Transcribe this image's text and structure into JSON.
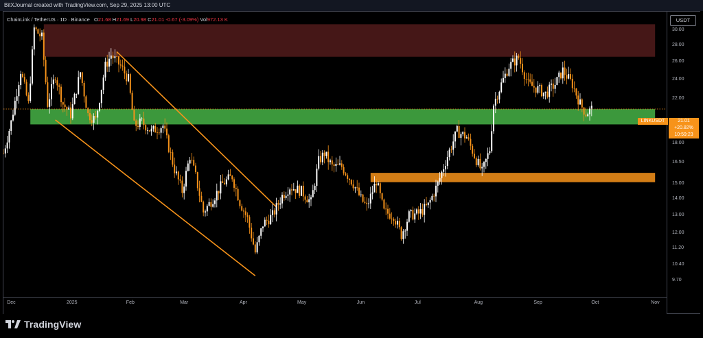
{
  "header": {
    "watermark": "BitXJournal created with TradingView.com, Sep 29, 2025 13:00 UTC"
  },
  "legend": {
    "symbol": "ChainLink / TetherUS · 1D · Binance",
    "o_key": "O",
    "o_val": "21.68",
    "h_key": "H",
    "h_val": "21.69",
    "l_key": "L",
    "l_val": "20.98",
    "c_key": "C",
    "c_val": "21.01",
    "change": "-0.67 (-3.09%)",
    "vol_key": "Vol",
    "vol_val": "972.13 K"
  },
  "currency_button": "USDT",
  "price_label": {
    "ticker": "LINKUSDT",
    "price": "21.01",
    "change": "+20.82%",
    "countdown": "10:59:23"
  },
  "footer": {
    "brand": "TradingView"
  },
  "chart_data": {
    "type": "candlestick",
    "symbol": "LINKUSDT",
    "interval": "1D",
    "exchange": "Binance",
    "y_scale": "log",
    "ylim": [
      9.0,
      32.5
    ],
    "y_ticks": [
      "30.00",
      "28.00",
      "26.00",
      "24.00",
      "22.00",
      "18.00",
      "16.50",
      "15.00",
      "14.00",
      "13.00",
      "12.00",
      "11.20",
      "10.40",
      "9.70"
    ],
    "x_ticks": [
      "Dec",
      "2025",
      "Feb",
      "Mar",
      "Apr",
      "May",
      "Jun",
      "Jul",
      "Aug",
      "Sep",
      "Oct",
      "Nov"
    ],
    "x_tick_dates": [
      "2024-12-01",
      "2025-01-01",
      "2025-02-01",
      "2025-03-01",
      "2025-04-01",
      "2025-05-01",
      "2025-06-01",
      "2025-07-01",
      "2025-08-01",
      "2025-09-01",
      "2025-10-01",
      "2025-11-01"
    ],
    "x_range": [
      "2024-11-27",
      "2025-11-07"
    ],
    "current_price": 21.01,
    "colors": {
      "up": "#ffffff",
      "down": "#f7931a",
      "resistance_zone": "#5c1f1f",
      "support_zone_green": "#3fa03f",
      "support_zone_orange": "#f7931a",
      "channel_line": "#f7931a",
      "price_line": "#f7931a"
    },
    "zones": [
      {
        "name": "resistance",
        "from": "2024-12-18",
        "to": "2025-11-01",
        "low": 26.6,
        "high": 30.8
      },
      {
        "name": "support",
        "from": "2024-12-11",
        "to": "2025-11-01",
        "low": 19.6,
        "high": 21.0
      },
      {
        "name": "support-lower",
        "from": "2025-06-06",
        "to": "2025-11-01",
        "low": 15.1,
        "high": 15.75
      }
    ],
    "channel_lines": [
      {
        "from": [
          "2025-01-25",
          27.2
        ],
        "to": [
          "2025-04-18",
          13.5
        ]
      },
      {
        "from": [
          "2024-12-24",
          20.0
        ],
        "to": [
          "2025-04-07",
          9.9
        ]
      }
    ],
    "path": [
      [
        "2024-11-27",
        17.2
      ],
      [
        "2024-12-01",
        19.8
      ],
      [
        "2024-12-06",
        25.0
      ],
      [
        "2024-12-10",
        21.5
      ],
      [
        "2024-12-13",
        30.2
      ],
      [
        "2024-12-17",
        29.0
      ],
      [
        "2024-12-20",
        21.5
      ],
      [
        "2024-12-24",
        24.5
      ],
      [
        "2024-12-28",
        21.5
      ],
      [
        "2025-01-01",
        20.5
      ],
      [
        "2025-01-06",
        24.8
      ],
      [
        "2025-01-10",
        20.5
      ],
      [
        "2025-01-14",
        20.0
      ],
      [
        "2025-01-19",
        25.5
      ],
      [
        "2025-01-22",
        26.8
      ],
      [
        "2025-01-27",
        25.5
      ],
      [
        "2025-01-31",
        24.0
      ],
      [
        "2025-02-03",
        19.5
      ],
      [
        "2025-02-07",
        19.8
      ],
      [
        "2025-02-12",
        19.0
      ],
      [
        "2025-02-18",
        19.5
      ],
      [
        "2025-02-24",
        16.0
      ],
      [
        "2025-02-28",
        14.5
      ],
      [
        "2025-03-04",
        17.0
      ],
      [
        "2025-03-07",
        15.5
      ],
      [
        "2025-03-11",
        13.2
      ],
      [
        "2025-03-17",
        14.2
      ],
      [
        "2025-03-21",
        15.0
      ],
      [
        "2025-03-26",
        15.5
      ],
      [
        "2025-03-30",
        13.8
      ],
      [
        "2025-04-03",
        12.8
      ],
      [
        "2025-04-07",
        11.0
      ],
      [
        "2025-04-11",
        12.5
      ],
      [
        "2025-04-16",
        13.0
      ],
      [
        "2025-04-21",
        14.2
      ],
      [
        "2025-04-25",
        14.8
      ],
      [
        "2025-05-01",
        14.5
      ],
      [
        "2025-05-06",
        13.8
      ],
      [
        "2025-05-10",
        16.6
      ],
      [
        "2025-05-13",
        17.2
      ],
      [
        "2025-05-17",
        16.2
      ],
      [
        "2025-05-22",
        16.2
      ],
      [
        "2025-05-28",
        15.0
      ],
      [
        "2025-06-01",
        14.0
      ],
      [
        "2025-06-04",
        13.5
      ],
      [
        "2025-06-09",
        15.2
      ],
      [
        "2025-06-13",
        13.2
      ],
      [
        "2025-06-18",
        13.0
      ],
      [
        "2025-06-22",
        11.9
      ],
      [
        "2025-06-26",
        13.0
      ],
      [
        "2025-07-01",
        13.1
      ],
      [
        "2025-07-06",
        13.6
      ],
      [
        "2025-07-11",
        15.0
      ],
      [
        "2025-07-16",
        17.0
      ],
      [
        "2025-07-21",
        19.0
      ],
      [
        "2025-07-26",
        18.5
      ],
      [
        "2025-07-31",
        16.7
      ],
      [
        "2025-08-03",
        15.8
      ],
      [
        "2025-08-07",
        17.5
      ],
      [
        "2025-08-09",
        21.5
      ],
      [
        "2025-08-13",
        23.5
      ],
      [
        "2025-08-17",
        25.5
      ],
      [
        "2025-08-22",
        26.5
      ],
      [
        "2025-08-27",
        23.5
      ],
      [
        "2025-09-01",
        23.0
      ],
      [
        "2025-09-05",
        22.5
      ],
      [
        "2025-09-10",
        23.5
      ],
      [
        "2025-09-14",
        25.0
      ],
      [
        "2025-09-19",
        23.5
      ],
      [
        "2025-09-23",
        21.5
      ],
      [
        "2025-09-26",
        20.6
      ],
      [
        "2025-09-29",
        21.0
      ]
    ]
  }
}
